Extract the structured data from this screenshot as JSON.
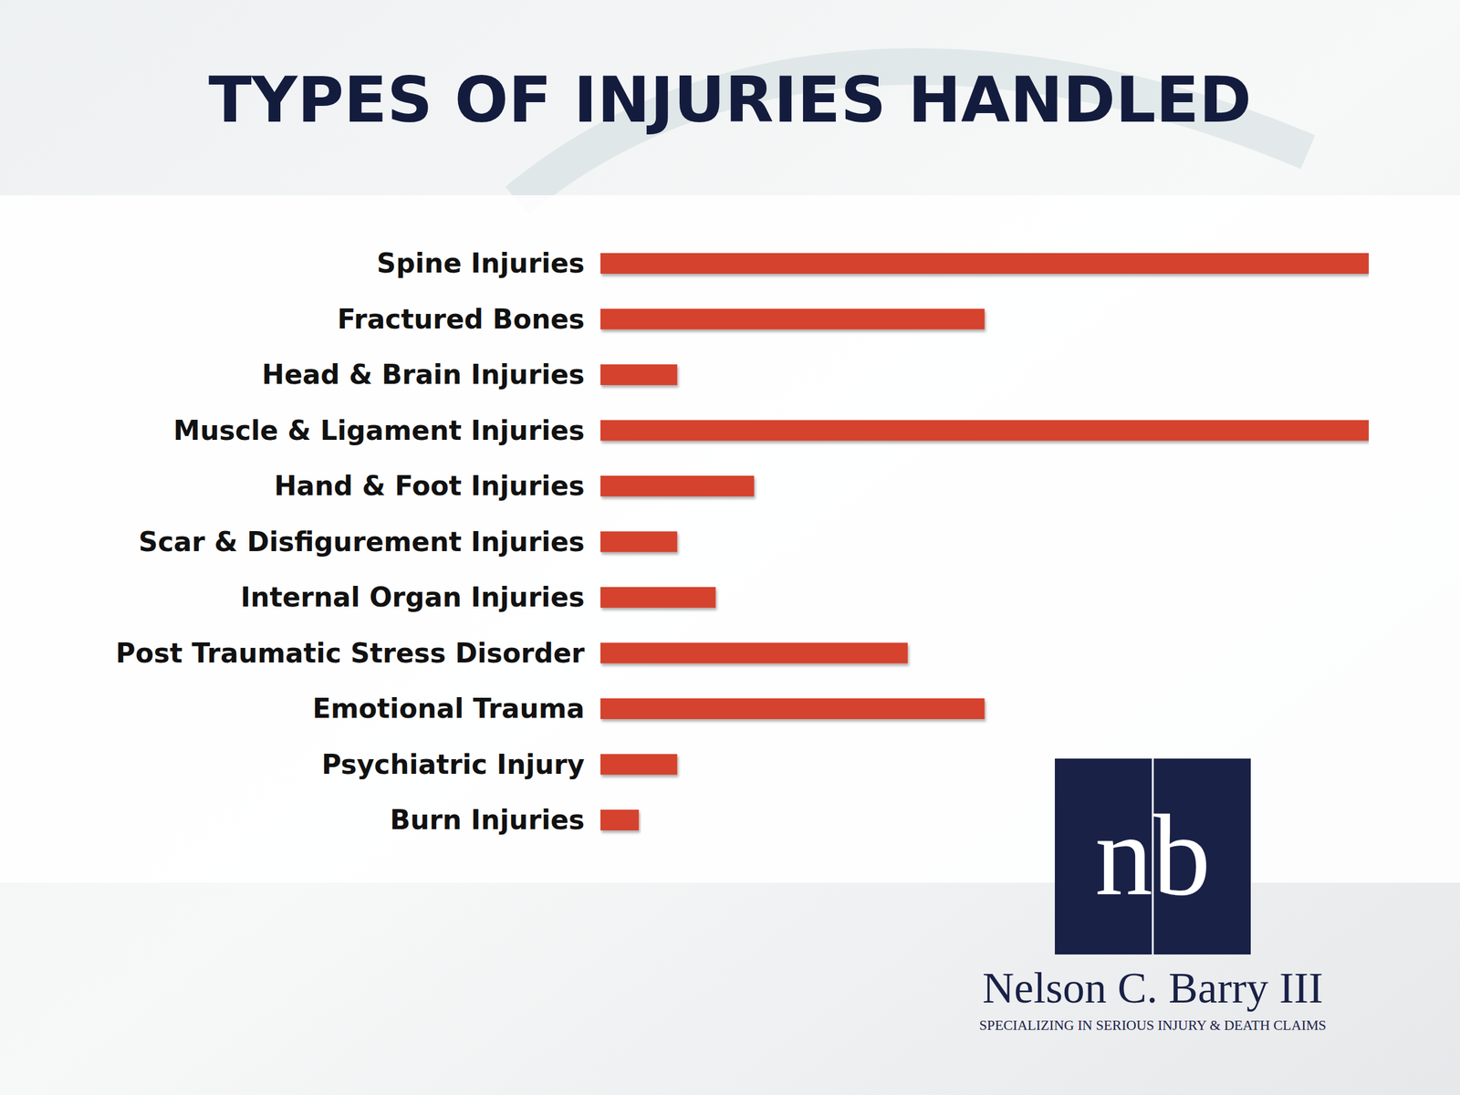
{
  "chart_data": {
    "type": "bar",
    "orientation": "horizontal",
    "title": "TYPES OF INJURIES HANDLED",
    "categories": [
      "Spine Injuries",
      "Fractured Bones",
      "Head & Brain Injuries",
      "Muscle & Ligament Injuries",
      "Hand & Foot Injuries",
      "Scar & Disfigurement Injuries",
      "Internal Organ Injuries",
      "Post Traumatic Stress Disorder",
      "Emotional Trauma",
      "Psychiatric Injury",
      "Burn Injuries"
    ],
    "values": [
      100,
      50,
      10,
      100,
      20,
      10,
      15,
      40,
      50,
      10,
      5
    ],
    "color": "#d5432f",
    "xlim": [
      0,
      100
    ],
    "grid": false,
    "tick_labels": false,
    "annotations": [
      "nb",
      "Nelson C. Barry III",
      "SPECIALIZING IN SERIOUS INJURY & DEATH CLAIMS"
    ]
  }
}
